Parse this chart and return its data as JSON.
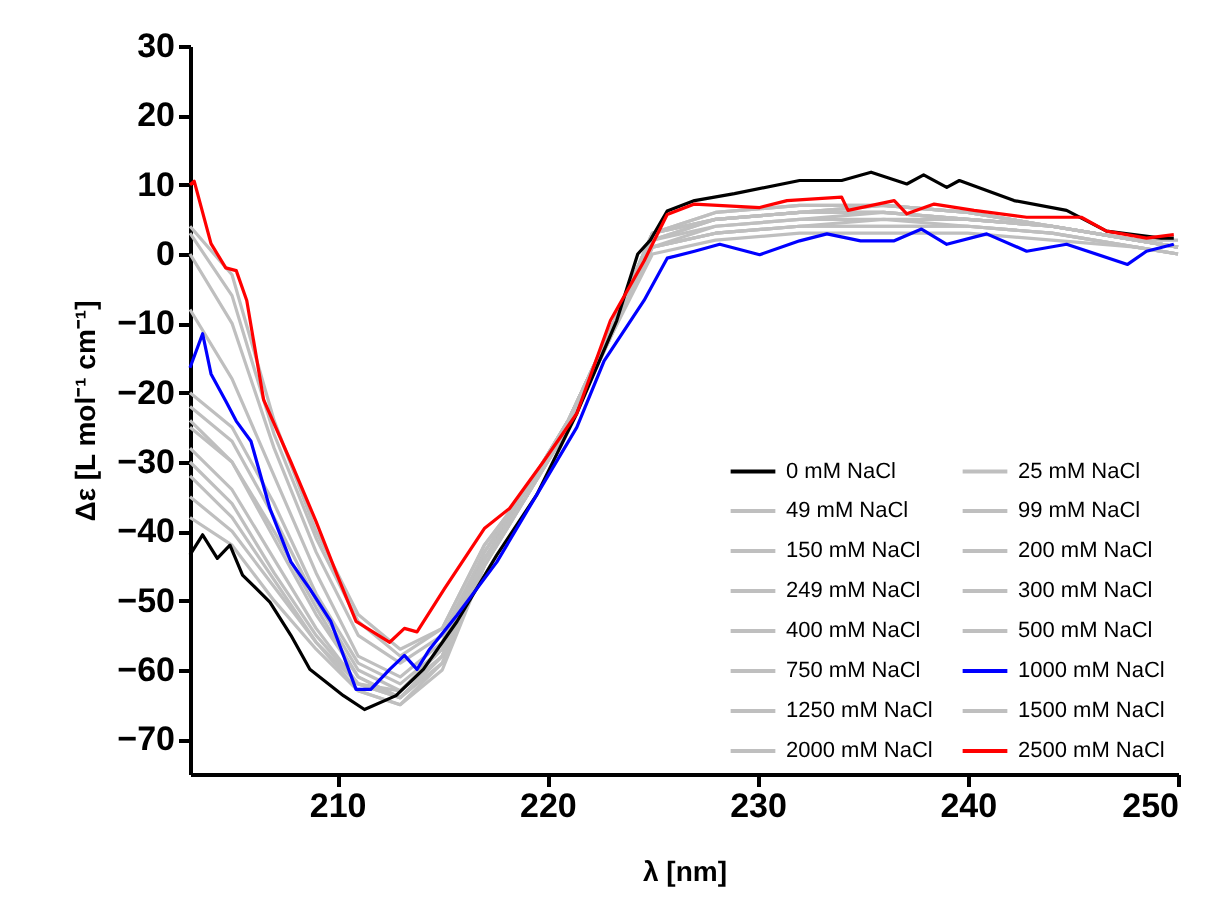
{
  "chart_data": {
    "type": "line",
    "xlabel": "λ [nm]",
    "ylabel": "Δε [L mol⁻¹ cm⁻¹]",
    "xlim": [
      203,
      250
    ],
    "ylim": [
      -75,
      30
    ],
    "xticks": [
      210,
      220,
      230,
      240,
      250
    ],
    "yticks": [
      -70,
      -60,
      -50,
      -40,
      -30,
      -20,
      -10,
      0,
      10,
      20,
      30
    ],
    "grid": false,
    "legend": "bottom right",
    "marker": "none",
    "line_style": "solid",
    "series": [
      {
        "name": "0 mM NaCl",
        "color": "#000000",
        "x": [
          203,
          203.6,
          204.3,
          204.9,
          205.5,
          206.8,
          207.8,
          208.7,
          210.3,
          211.3,
          212.8,
          214.1,
          215.7,
          217.6,
          219.5,
          221.4,
          223.3,
          224.3,
          224.9,
          225.7,
          227,
          228.9,
          232,
          234,
          235.4,
          237.1,
          237.9,
          239,
          239.6,
          242.2,
          244.7,
          246.6,
          249.2,
          249.8
        ],
        "values": [
          -43.4,
          -40.5,
          -43.9,
          -42,
          -46.3,
          -50.2,
          -55,
          -59.9,
          -63.7,
          -65.7,
          -63.7,
          -59.9,
          -53,
          -43.4,
          -34.7,
          -23,
          -9.6,
          0,
          2,
          6.2,
          7.7,
          8.7,
          10.6,
          10.6,
          11.8,
          10.1,
          11.4,
          9.6,
          10.6,
          7.7,
          6.3,
          3.3,
          2.3,
          2.3
        ]
      },
      {
        "name": "25 mM NaCl",
        "color": "#bfbfbf",
        "x": [
          203,
          205,
          207,
          209,
          211,
          213,
          215,
          217,
          219,
          221,
          223,
          225,
          228,
          232,
          236,
          240,
          244,
          248,
          250
        ],
        "values": [
          -38,
          -42,
          -50,
          -57,
          -63,
          -65,
          -60,
          -45,
          -35,
          -24,
          -11,
          1,
          3,
          4,
          4,
          4,
          3,
          1,
          0
        ]
      },
      {
        "name": "49 mM NaCl",
        "color": "#bfbfbf",
        "x": [
          203,
          205,
          207,
          209,
          211,
          213,
          215,
          217,
          219,
          221,
          223,
          225,
          228,
          232,
          236,
          240,
          244,
          248,
          250
        ],
        "values": [
          -32,
          -38,
          -47,
          -56,
          -62,
          -64,
          -59,
          -45,
          -35,
          -24,
          -11,
          1,
          4,
          5,
          5,
          5,
          4,
          2,
          1
        ]
      },
      {
        "name": "99 mM NaCl",
        "color": "#bfbfbf",
        "x": [
          203,
          205,
          207,
          209,
          211,
          213,
          215,
          217,
          219,
          221,
          223,
          225,
          228,
          232,
          236,
          240,
          244,
          248,
          250
        ],
        "values": [
          -28,
          -34,
          -44,
          -54,
          -62,
          -63,
          -58,
          -44,
          -35,
          -24,
          -11,
          2,
          4,
          5,
          6,
          5,
          4,
          2,
          1
        ]
      },
      {
        "name": "150 mM NaCl",
        "color": "#bfbfbf",
        "x": [
          203,
          205,
          207,
          209,
          211,
          213,
          215,
          217,
          219,
          221,
          223,
          225,
          228,
          232,
          236,
          240,
          244,
          248,
          250
        ],
        "values": [
          -24,
          -30,
          -41,
          -52,
          -61,
          -64,
          -58,
          -44,
          -35,
          -25,
          -12,
          2,
          5,
          6,
          6,
          5,
          4,
          2,
          1
        ]
      },
      {
        "name": "200 mM NaCl",
        "color": "#bfbfbf",
        "x": [
          203,
          205,
          207,
          209,
          211,
          213,
          215,
          217,
          219,
          221,
          223,
          225,
          228,
          232,
          236,
          240,
          244,
          248,
          250
        ],
        "values": [
          -22,
          -27,
          -38,
          -50,
          -60,
          -63,
          -57,
          -44,
          -34,
          -24,
          -11,
          2,
          5,
          6,
          7,
          6,
          4,
          2,
          1
        ]
      },
      {
        "name": "249 mM NaCl",
        "color": "#bfbfbf",
        "x": [
          203,
          205,
          207,
          209,
          211,
          213,
          215,
          217,
          219,
          221,
          223,
          225,
          228,
          232,
          236,
          240,
          244,
          248,
          250
        ],
        "values": [
          -20,
          -25,
          -36,
          -49,
          -59,
          -62,
          -57,
          -43,
          -34,
          -24,
          -11,
          3,
          5,
          6,
          7,
          6,
          4,
          2,
          1
        ]
      },
      {
        "name": "300 mM NaCl",
        "color": "#bfbfbf",
        "x": [
          203,
          205,
          207,
          209,
          211,
          213,
          215,
          217,
          219,
          221,
          223,
          225,
          228,
          232,
          236,
          240,
          244,
          248,
          250
        ],
        "values": [
          -8,
          -18,
          -32,
          -46,
          -58,
          -61,
          -56,
          -43,
          -34,
          -24,
          -11,
          3,
          5,
          6,
          6,
          5,
          4,
          2,
          1
        ]
      },
      {
        "name": "400 mM NaCl",
        "color": "#bfbfbf",
        "x": [
          203,
          205,
          207,
          209,
          211,
          213,
          215,
          217,
          219,
          221,
          223,
          225,
          228,
          232,
          236,
          240,
          244,
          248,
          250
        ],
        "values": [
          0,
          -10,
          -28,
          -43,
          -55,
          -59,
          -55,
          -43,
          -34,
          -24,
          -11,
          3,
          6,
          7,
          7,
          6,
          4,
          2,
          1
        ]
      },
      {
        "name": "500 mM NaCl",
        "color": "#bfbfbf",
        "x": [
          203,
          205,
          207,
          209,
          211,
          213,
          215,
          217,
          219,
          221,
          223,
          225,
          228,
          232,
          236,
          240,
          244,
          248,
          250
        ],
        "values": [
          -25,
          -30,
          -40,
          -51,
          -61,
          -64,
          -58,
          -44,
          -35,
          -25,
          -12,
          1,
          3,
          4,
          4,
          4,
          3,
          1,
          0
        ]
      },
      {
        "name": "750 mM NaCl",
        "color": "#bfbfbf",
        "x": [
          203,
          205,
          207,
          209,
          211,
          213,
          215,
          217,
          219,
          221,
          223,
          225,
          228,
          232,
          236,
          240,
          244,
          248,
          250
        ],
        "values": [
          3,
          -6,
          -26,
          -41,
          -53,
          -58,
          -54,
          -42,
          -34,
          -24,
          -11,
          3,
          5,
          6,
          6,
          5,
          4,
          2,
          1
        ]
      },
      {
        "name": "1000 mM NaCl",
        "color": "#0000ff",
        "x": [
          203,
          203.6,
          204,
          204.7,
          205.2,
          205.9,
          206.8,
          207.8,
          208.7,
          209.7,
          210.9,
          211.6,
          212.5,
          213.2,
          213.8,
          214.4,
          215.7,
          217.6,
          219.5,
          221.4,
          222.7,
          224.6,
          225.7,
          227,
          228.2,
          230.1,
          232,
          233.3,
          234.9,
          236.5,
          237.8,
          239,
          240.9,
          242.8,
          244.7,
          247.6,
          248.5,
          249.8
        ],
        "values": [
          -16.4,
          -11.5,
          -17.3,
          -21.2,
          -24.1,
          -27,
          -36.7,
          -44.4,
          -48.3,
          -53,
          -62.8,
          -62.8,
          -59.9,
          -57.9,
          -59.9,
          -57,
          -52.1,
          -44.4,
          -34.7,
          -25,
          -15.4,
          -6.7,
          -0.6,
          0.4,
          1.4,
          -0.1,
          1.9,
          2.9,
          1.9,
          1.9,
          3.6,
          1.4,
          2.9,
          0.4,
          1.4,
          -1.5,
          0.4,
          1.4
        ]
      },
      {
        "name": "1250 mM NaCl",
        "color": "#bfbfbf",
        "x": [
          203,
          205,
          207,
          209,
          211,
          213,
          215,
          217,
          219,
          221,
          223,
          225,
          228,
          232,
          236,
          240,
          244,
          248,
          250
        ],
        "values": [
          4,
          -3,
          -24,
          -40,
          -52,
          -57,
          -54,
          -42,
          -34,
          -24,
          -11,
          3,
          6,
          7,
          7,
          6,
          4,
          2,
          2
        ]
      },
      {
        "name": "1500 mM NaCl",
        "color": "#bfbfbf",
        "x": [
          203,
          205,
          207,
          209,
          211,
          213,
          215,
          217,
          219,
          221,
          223,
          225,
          228,
          232,
          236,
          240,
          244,
          248,
          250
        ],
        "values": [
          -35,
          -40,
          -48,
          -56,
          -63,
          -65,
          -59,
          -45,
          -35,
          -25,
          -12,
          0,
          2,
          3,
          3,
          3,
          2,
          1,
          0
        ]
      },
      {
        "name": "2000 mM NaCl",
        "color": "#bfbfbf",
        "x": [
          203,
          205,
          207,
          209,
          211,
          213,
          215,
          217,
          219,
          221,
          223,
          225,
          228,
          232,
          236,
          240,
          244,
          248,
          250
        ],
        "values": [
          -30,
          -36,
          -46,
          -55,
          -62,
          -64,
          -58,
          -44,
          -35,
          -25,
          -12,
          1,
          3,
          4,
          5,
          4,
          3,
          1,
          0
        ]
      },
      {
        "name": "2500 mM NaCl",
        "color": "#ff0000",
        "x": [
          203,
          203.2,
          204,
          204.7,
          205.2,
          205.7,
          206.5,
          207.8,
          209,
          210,
          210.9,
          212.5,
          213.2,
          213.8,
          215.1,
          217,
          218.2,
          219.8,
          221.4,
          223,
          224.6,
          225.7,
          227,
          230.1,
          231.4,
          234,
          234.3,
          236.5,
          237.1,
          238.4,
          240.3,
          242.8,
          245.4,
          246.6,
          248.5,
          249.8
        ],
        "values": [
          10,
          10.5,
          1.5,
          -2,
          -2.4,
          -6.7,
          -21,
          -30,
          -38.6,
          -46.3,
          -53,
          -56,
          -54,
          -54.5,
          -48.3,
          -39.6,
          -36.7,
          -30,
          -23,
          -9.6,
          -1,
          5.7,
          7.2,
          6.7,
          7.7,
          8.2,
          6.3,
          7.7,
          5.8,
          7.2,
          6.3,
          5.3,
          5.3,
          3.3,
          2.3,
          2.8
        ]
      }
    ]
  }
}
